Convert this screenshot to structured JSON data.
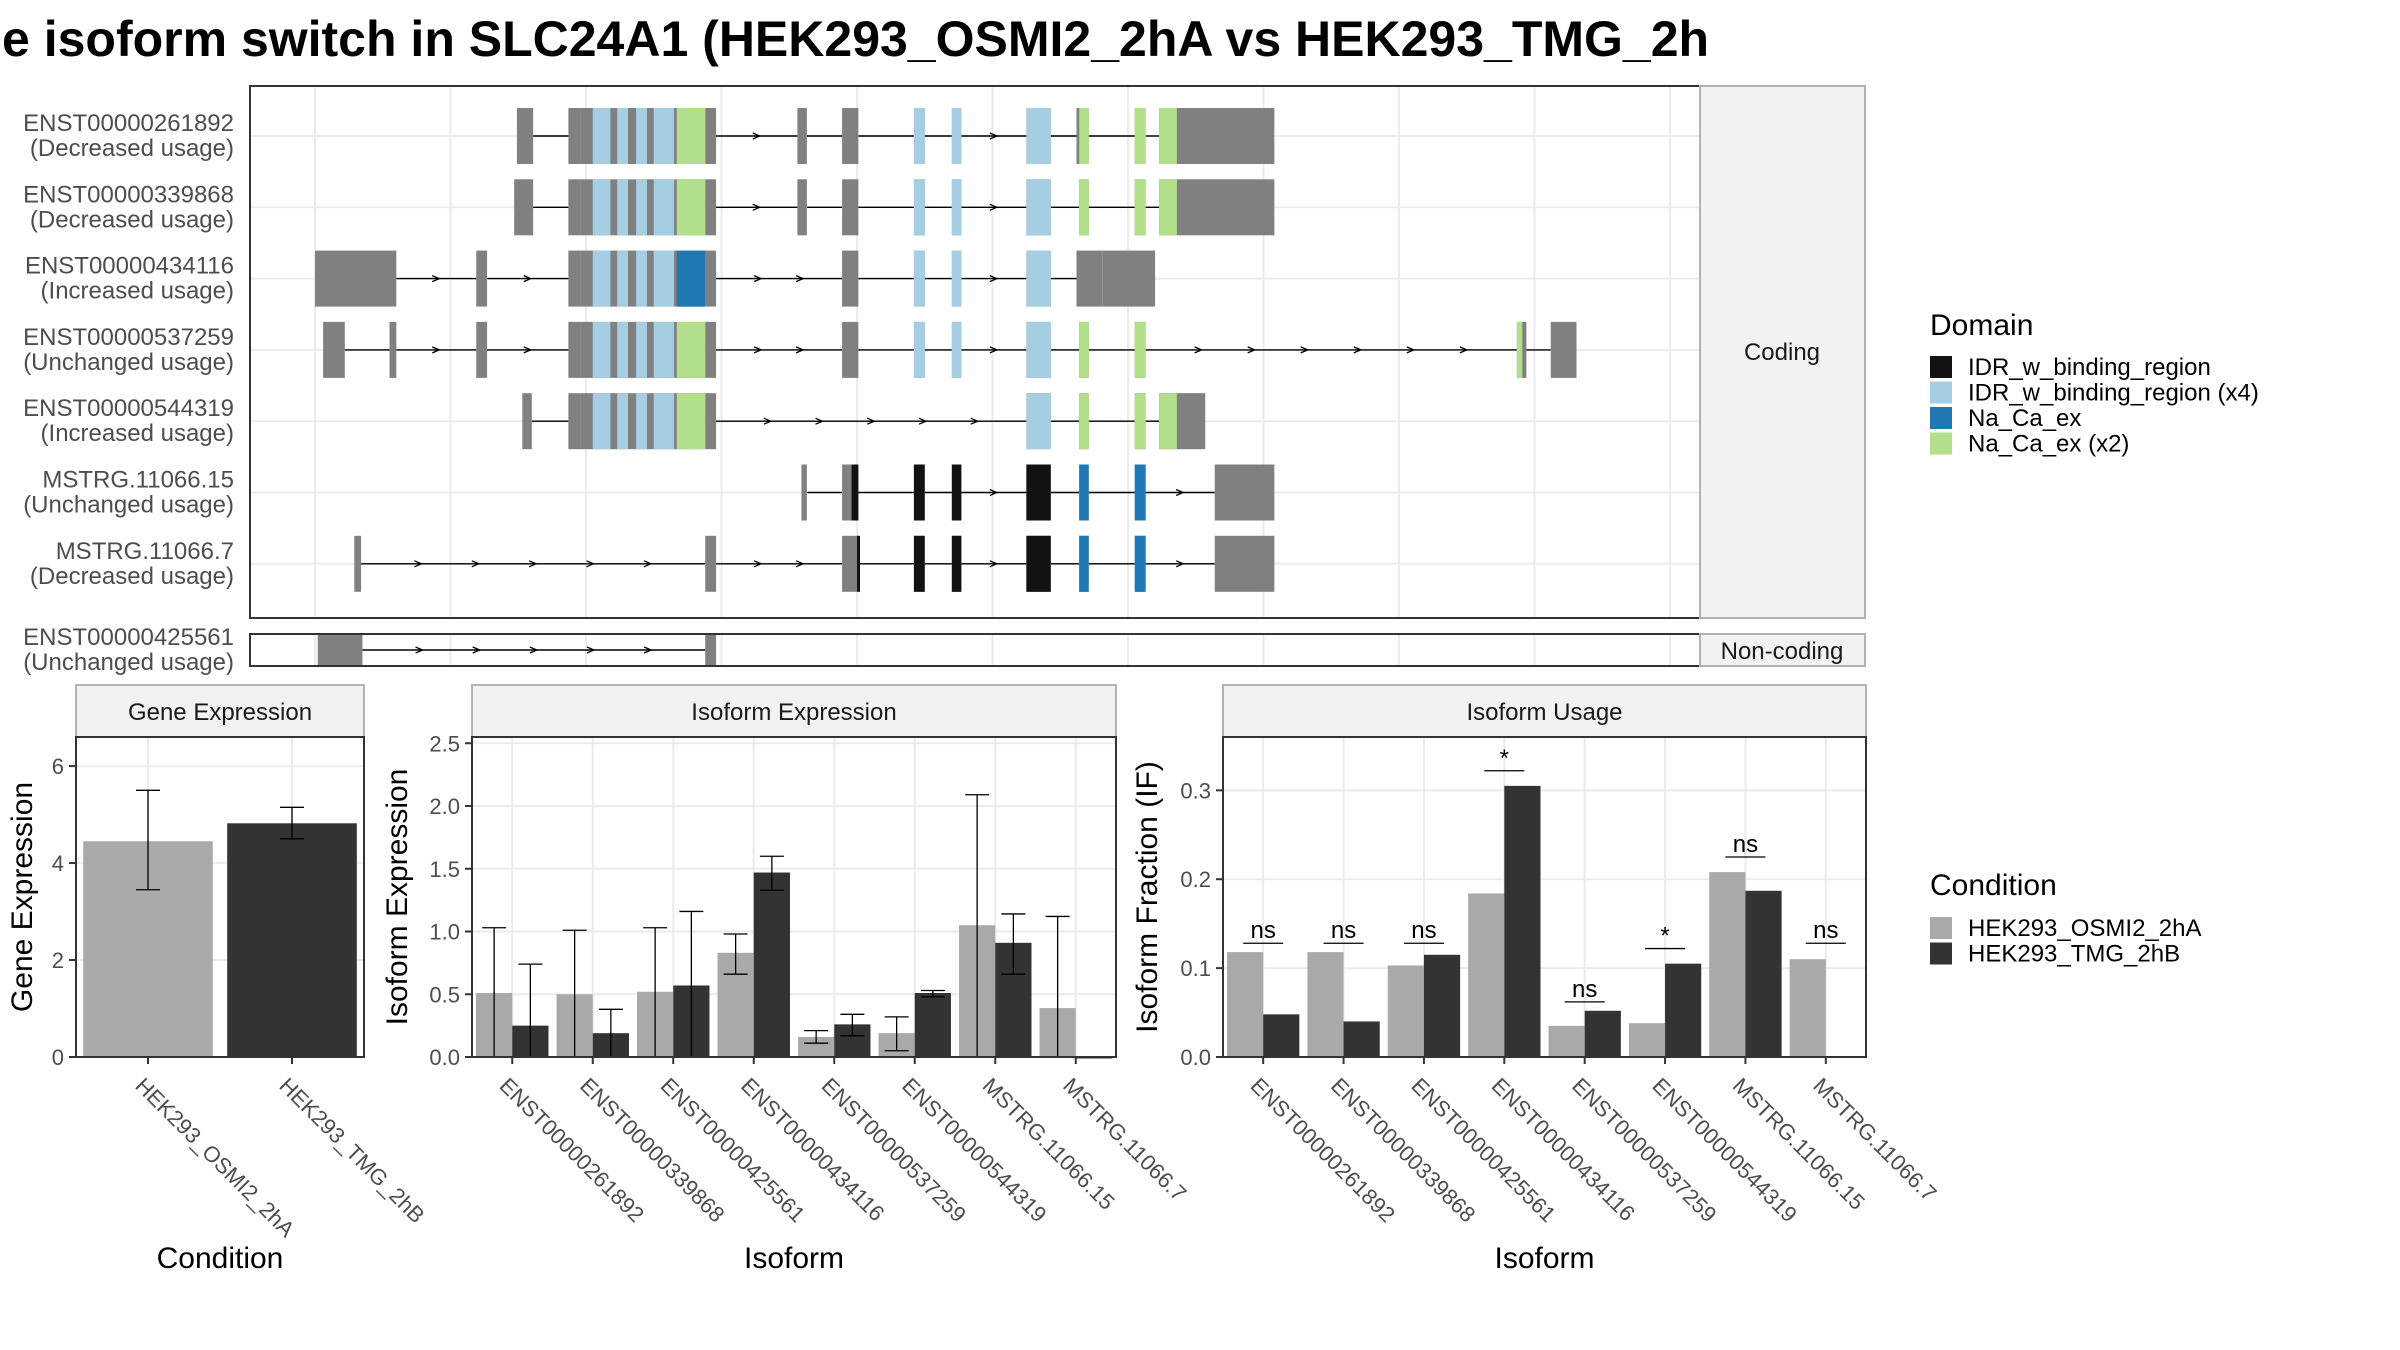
{
  "title": "e isoform switch in SLC24A1 (HEK293_OSMI2_2hA vs HEK293_TMG_2h",
  "colors": {
    "exon": "#808080",
    "idr_single": "#121212",
    "idr_multi": "#a6cee3",
    "naca_single": "#1f78b4",
    "naca_multi": "#b2df8a",
    "cond_a": "#a9a9a9",
    "cond_b": "#333333",
    "grid": "#ebebeb",
    "strip": "#f2f2f2"
  },
  "structure": {
    "coding_label": "Coding",
    "noncoding_label": "Non-coding",
    "genomic_range": [
      0,
      1000
    ],
    "coding": [
      {
        "id": "ENST00000261892",
        "usage": "(Decreased usage)",
        "exons": [
          [
            149,
            161
          ],
          [
            187,
            196
          ],
          [
            196,
            288
          ],
          [
            288,
            296
          ],
          [
            356,
            363
          ],
          [
            389,
            401
          ],
          [
            442,
            450
          ],
          [
            470,
            477
          ],
          [
            525,
            543
          ],
          [
            562,
            564
          ],
          [
            564,
            571
          ],
          [
            605,
            613
          ],
          [
            623,
            636
          ],
          [
            636,
            708
          ]
        ],
        "domains": [
          [
            205,
            218,
            "idr_multi"
          ],
          [
            223,
            231,
            "idr_multi"
          ],
          [
            237,
            245,
            "idr_multi"
          ],
          [
            250,
            265,
            "idr_multi"
          ],
          [
            267,
            288,
            "naca_multi"
          ],
          [
            442,
            450,
            "idr_multi"
          ],
          [
            470,
            477,
            "idr_multi"
          ],
          [
            525,
            543,
            "idr_multi"
          ],
          [
            564,
            571,
            "naca_multi"
          ],
          [
            605,
            613,
            "naca_multi"
          ],
          [
            623,
            636,
            "naca_multi"
          ]
        ]
      },
      {
        "id": "ENST00000339868",
        "usage": "(Decreased usage)",
        "exons": [
          [
            147,
            161
          ],
          [
            187,
            196
          ],
          [
            196,
            288
          ],
          [
            288,
            296
          ],
          [
            356,
            363
          ],
          [
            389,
            401
          ],
          [
            442,
            450
          ],
          [
            470,
            477
          ],
          [
            525,
            543
          ],
          [
            564,
            571
          ],
          [
            605,
            613
          ],
          [
            623,
            636
          ],
          [
            636,
            708
          ]
        ],
        "domains": [
          [
            205,
            218,
            "idr_multi"
          ],
          [
            223,
            231,
            "idr_multi"
          ],
          [
            237,
            245,
            "idr_multi"
          ],
          [
            250,
            265,
            "idr_multi"
          ],
          [
            267,
            288,
            "naca_multi"
          ],
          [
            442,
            450,
            "idr_multi"
          ],
          [
            470,
            477,
            "idr_multi"
          ],
          [
            525,
            543,
            "idr_multi"
          ],
          [
            564,
            571,
            "naca_multi"
          ],
          [
            605,
            613,
            "naca_multi"
          ],
          [
            623,
            636,
            "naca_multi"
          ]
        ]
      },
      {
        "id": "ENST00000434116",
        "usage": "(Increased usage)",
        "exons": [
          [
            0,
            60
          ],
          [
            119,
            127
          ],
          [
            187,
            196
          ],
          [
            196,
            288
          ],
          [
            288,
            296
          ],
          [
            389,
            401
          ],
          [
            442,
            450
          ],
          [
            470,
            477
          ],
          [
            525,
            543
          ],
          [
            562,
            581
          ],
          [
            581,
            620
          ]
        ],
        "domains": [
          [
            205,
            218,
            "idr_multi"
          ],
          [
            223,
            231,
            "idr_multi"
          ],
          [
            237,
            245,
            "idr_multi"
          ],
          [
            250,
            265,
            "idr_multi"
          ],
          [
            267,
            288,
            "naca_single"
          ],
          [
            442,
            450,
            "idr_multi"
          ],
          [
            470,
            477,
            "idr_multi"
          ],
          [
            525,
            543,
            "idr_multi"
          ]
        ]
      },
      {
        "id": "ENST00000537259",
        "usage": "(Unchanged usage)",
        "exons": [
          [
            6,
            22
          ],
          [
            55,
            60
          ],
          [
            119,
            127
          ],
          [
            187,
            196
          ],
          [
            196,
            288
          ],
          [
            288,
            296
          ],
          [
            389,
            401
          ],
          [
            442,
            450
          ],
          [
            470,
            477
          ],
          [
            525,
            543
          ],
          [
            564,
            571
          ],
          [
            605,
            613
          ],
          [
            887,
            894
          ],
          [
            912,
            931
          ]
        ],
        "domains": [
          [
            205,
            218,
            "idr_multi"
          ],
          [
            223,
            231,
            "idr_multi"
          ],
          [
            237,
            245,
            "idr_multi"
          ],
          [
            250,
            265,
            "idr_multi"
          ],
          [
            267,
            288,
            "naca_multi"
          ],
          [
            442,
            450,
            "idr_multi"
          ],
          [
            470,
            477,
            "idr_multi"
          ],
          [
            525,
            543,
            "idr_multi"
          ],
          [
            564,
            571,
            "naca_multi"
          ],
          [
            605,
            613,
            "naca_multi"
          ],
          [
            887,
            891,
            "naca_multi"
          ]
        ]
      },
      {
        "id": "ENST00000544319",
        "usage": "(Increased usage)",
        "exons": [
          [
            153,
            160
          ],
          [
            187,
            196
          ],
          [
            196,
            288
          ],
          [
            288,
            296
          ],
          [
            525,
            543
          ],
          [
            564,
            571
          ],
          [
            605,
            613
          ],
          [
            623,
            636
          ],
          [
            636,
            657
          ]
        ],
        "domains": [
          [
            205,
            218,
            "idr_multi"
          ],
          [
            223,
            231,
            "idr_multi"
          ],
          [
            237,
            245,
            "idr_multi"
          ],
          [
            250,
            265,
            "idr_multi"
          ],
          [
            267,
            288,
            "naca_multi"
          ],
          [
            525,
            543,
            "idr_multi"
          ],
          [
            564,
            571,
            "naca_multi"
          ],
          [
            605,
            613,
            "naca_multi"
          ],
          [
            623,
            636,
            "naca_multi"
          ]
        ]
      },
      {
        "id": "MSTRG.11066.15",
        "usage": "(Unchanged usage)",
        "exons": [
          [
            359,
            363
          ],
          [
            389,
            396
          ],
          [
            396,
            401
          ],
          [
            442,
            450
          ],
          [
            470,
            477
          ],
          [
            525,
            543
          ],
          [
            564,
            571
          ],
          [
            605,
            613
          ],
          [
            664,
            669
          ],
          [
            669,
            708
          ]
        ],
        "domains": [
          [
            396,
            401,
            "idr_single"
          ],
          [
            442,
            450,
            "idr_single"
          ],
          [
            470,
            477,
            "idr_single"
          ],
          [
            525,
            543,
            "idr_single"
          ],
          [
            564,
            571,
            "naca_single"
          ],
          [
            605,
            613,
            "naca_single"
          ]
        ]
      },
      {
        "id": "MSTRG.11066.7",
        "usage": "(Decreased usage)",
        "exons": [
          [
            29,
            34
          ],
          [
            288,
            296
          ],
          [
            389,
            401
          ],
          [
            442,
            450
          ],
          [
            470,
            477
          ],
          [
            525,
            543
          ],
          [
            564,
            571
          ],
          [
            605,
            613
          ],
          [
            664,
            669
          ],
          [
            669,
            708
          ]
        ],
        "domains": [
          [
            400,
            401,
            "idr_single"
          ],
          [
            442,
            450,
            "idr_single"
          ],
          [
            470,
            477,
            "idr_single"
          ],
          [
            525,
            543,
            "idr_single"
          ],
          [
            564,
            571,
            "naca_single"
          ],
          [
            605,
            613,
            "naca_single"
          ]
        ]
      }
    ],
    "noncoding": [
      {
        "id": "ENST00000425561",
        "usage": "(Unchanged usage)",
        "exons": [
          [
            2,
            35
          ],
          [
            288,
            296
          ]
        ],
        "domains": []
      }
    ]
  },
  "legend_domain": {
    "title": "Domain",
    "items": [
      {
        "label": "IDR_w_binding_region",
        "key": "idr_single"
      },
      {
        "label": "IDR_w_binding_region (x4)",
        "key": "idr_multi"
      },
      {
        "label": "Na_Ca_ex",
        "key": "naca_single"
      },
      {
        "label": "Na_Ca_ex (x2)",
        "key": "naca_multi"
      }
    ]
  },
  "legend_condition": {
    "title": "Condition",
    "items": [
      {
        "label": "HEK293_OSMI2_2hA",
        "key": "cond_a"
      },
      {
        "label": "HEK293_TMG_2hB",
        "key": "cond_b"
      }
    ]
  },
  "chart_data": [
    {
      "type": "bar",
      "title": "Gene Expression",
      "xlabel": "Condition",
      "ylabel": "Gene Expression",
      "ylim": [
        0,
        6.6
      ],
      "yticks": [
        0,
        2,
        4,
        6
      ],
      "categories": [
        "HEK293_OSMI2_2hA",
        "HEK293_TMG_2hB"
      ],
      "values": [
        4.45,
        4.82
      ],
      "errors": [
        [
          3.45,
          5.5
        ],
        [
          4.5,
          5.15
        ]
      ]
    },
    {
      "type": "bar",
      "title": "Isoform Expression",
      "xlabel": "Isoform",
      "ylabel": "Isoform Expression",
      "ylim": [
        0,
        2.55
      ],
      "yticks": [
        0.0,
        0.5,
        1.0,
        1.5,
        2.0,
        2.5
      ],
      "tick_decimals": 1,
      "categories": [
        "ENST00000261892",
        "ENST00000339868",
        "ENST00000425561",
        "ENST00000434116",
        "ENST00000537259",
        "ENST00000544319",
        "MSTRG.11066.15",
        "MSTRG.11066.7"
      ],
      "series": [
        {
          "name": "HEK293_OSMI2_2hA",
          "values": [
            0.51,
            0.5,
            0.52,
            0.83,
            0.16,
            0.19,
            1.05,
            0.39
          ],
          "errors": [
            [
              0.0,
              1.03
            ],
            [
              0.0,
              1.01
            ],
            [
              0.0,
              1.03
            ],
            [
              0.66,
              0.98
            ],
            [
              0.11,
              0.21
            ],
            [
              0.05,
              0.32
            ],
            [
              0.0,
              2.09
            ],
            [
              0.0,
              1.12
            ]
          ]
        },
        {
          "name": "HEK293_TMG_2hB",
          "values": [
            0.25,
            0.19,
            0.57,
            1.47,
            0.26,
            0.51,
            0.91,
            0.0
          ],
          "errors": [
            [
              0.0,
              0.74
            ],
            [
              0.0,
              0.38
            ],
            [
              0.0,
              1.16
            ],
            [
              1.33,
              1.6
            ],
            [
              0.17,
              0.34
            ],
            [
              0.48,
              0.53
            ],
            [
              0.66,
              1.14
            ],
            [
              0.0,
              0.0
            ]
          ]
        }
      ]
    },
    {
      "type": "bar",
      "title": "Isoform Usage",
      "xlabel": "Isoform",
      "ylabel": "Isoform Fraction (IF)",
      "ylim": [
        0,
        0.36
      ],
      "yticks": [
        0.0,
        0.1,
        0.2,
        0.3
      ],
      "tick_decimals": 1,
      "categories": [
        "ENST00000261892",
        "ENST00000339868",
        "ENST00000425561",
        "ENST00000434116",
        "ENST00000537259",
        "ENST00000544319",
        "MSTRG.11066.15",
        "MSTRG.11066.7"
      ],
      "series": [
        {
          "name": "HEK293_OSMI2_2hA",
          "values": [
            0.118,
            0.118,
            0.103,
            0.184,
            0.035,
            0.038,
            0.208,
            0.11
          ]
        },
        {
          "name": "HEK293_TMG_2hB",
          "values": [
            0.048,
            0.04,
            0.115,
            0.305,
            0.052,
            0.105,
            0.187,
            null
          ]
        }
      ],
      "annotations": [
        {
          "index": 0,
          "label": "ns",
          "y": 0.128
        },
        {
          "index": 1,
          "label": "ns",
          "y": 0.128
        },
        {
          "index": 2,
          "label": "ns",
          "y": 0.128
        },
        {
          "index": 3,
          "label": "*",
          "y": 0.322
        },
        {
          "index": 4,
          "label": "ns",
          "y": 0.062
        },
        {
          "index": 5,
          "label": "*",
          "y": 0.122
        },
        {
          "index": 6,
          "label": "ns",
          "y": 0.225
        },
        {
          "index": 7,
          "label": "ns",
          "y": 0.128
        }
      ]
    }
  ]
}
